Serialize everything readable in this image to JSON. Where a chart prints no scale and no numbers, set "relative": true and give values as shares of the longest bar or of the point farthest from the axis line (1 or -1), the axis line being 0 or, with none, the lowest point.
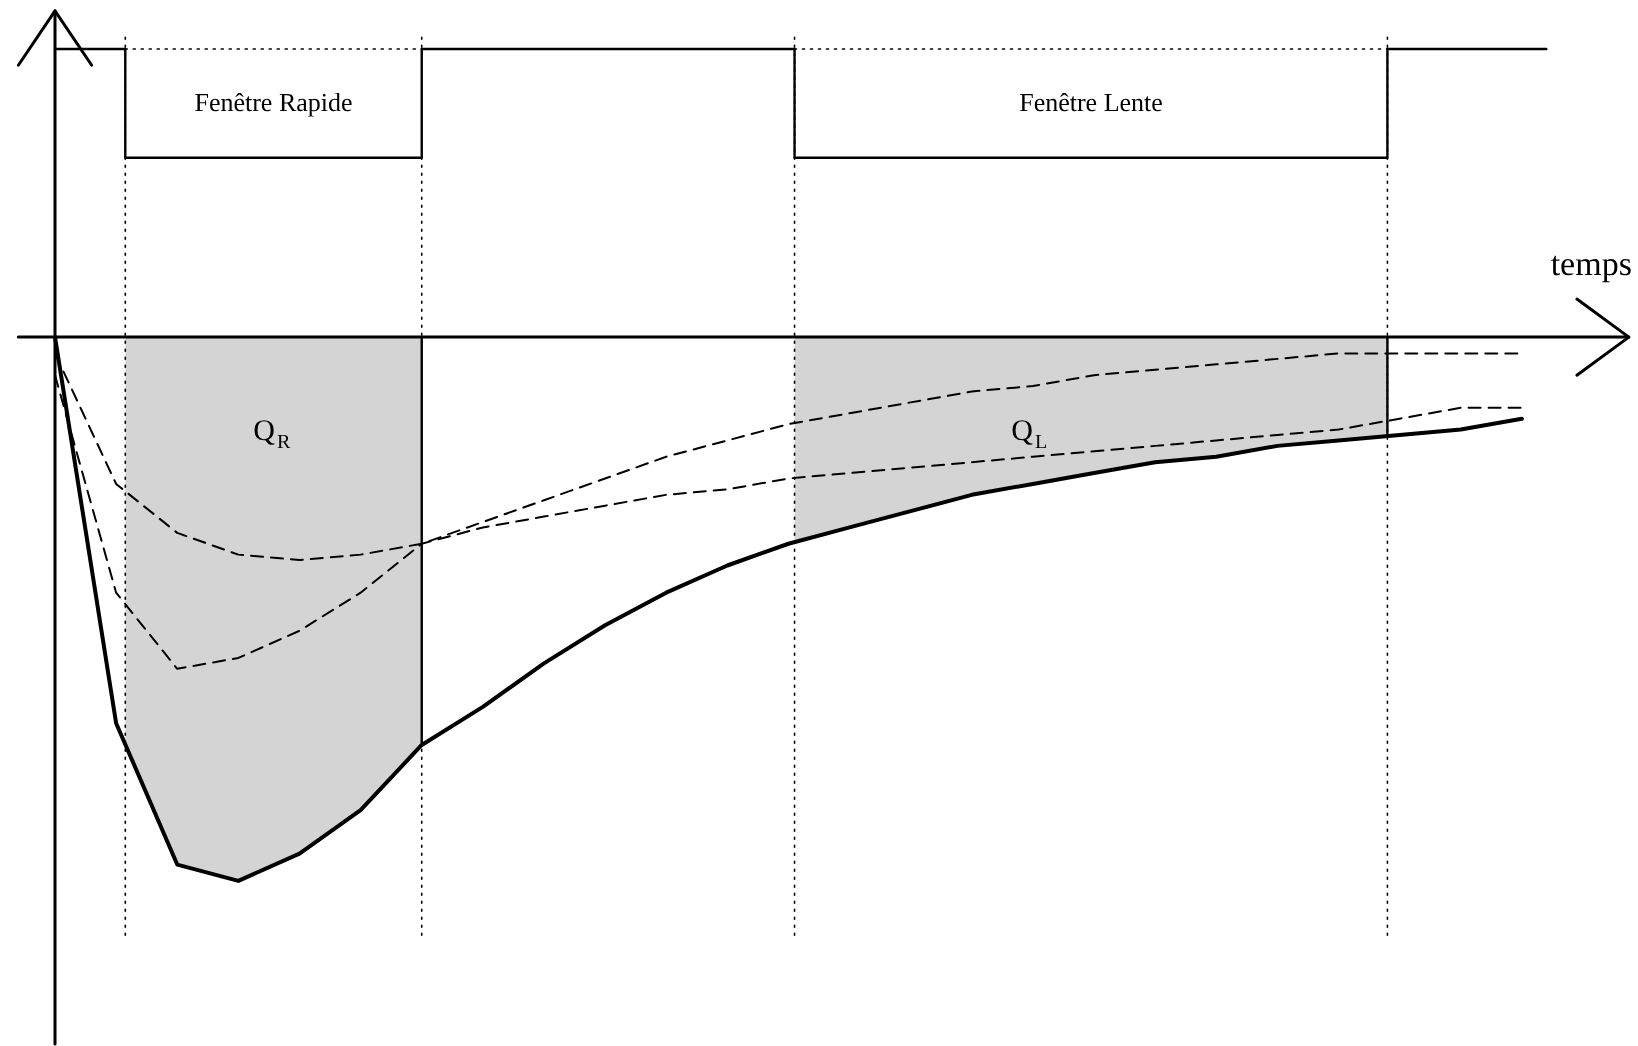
{
  "chart_data": {
    "type": "line",
    "relative": true,
    "xlabel": "temps",
    "categories": [
      null,
      null,
      null,
      null,
      null,
      null,
      null,
      null,
      null,
      null,
      null,
      null,
      null,
      null,
      null,
      null,
      null,
      null,
      null,
      null,
      null,
      null,
      null,
      null,
      null
    ],
    "series": [
      {
        "color": "#000000",
        "line_style": "solid",
        "values": [
          0,
          -0.71,
          -0.97,
          -1,
          -0.95,
          -0.87,
          -0.75,
          -0.68,
          -0.6,
          -0.53,
          -0.47,
          -0.42,
          -0.38,
          -0.35,
          -0.32,
          -0.29,
          -0.27,
          -0.25,
          -0.23,
          -0.22,
          -0.2,
          -0.19,
          -0.18,
          -0.17,
          -0.15
        ]
      },
      {
        "color": "#000000",
        "line_style": "dashed",
        "values": [
          -0.03,
          -0.27,
          -0.36,
          -0.4,
          -0.41,
          -0.4,
          -0.38,
          -0.34,
          -0.3,
          -0.26,
          -0.22,
          -0.19,
          -0.16,
          -0.14,
          -0.12,
          -0.1,
          -0.09,
          -0.07,
          -0.06,
          -0.05,
          -0.04,
          -0.03,
          -0.03,
          -0.03,
          -0.03
        ]
      },
      {
        "color": "#000000",
        "line_style": "dashed",
        "values": [
          -0.07,
          -0.47,
          -0.61,
          -0.59,
          -0.54,
          -0.47,
          -0.38,
          -0.35,
          -0.33,
          -0.31,
          -0.29,
          -0.28,
          -0.26,
          -0.25,
          -0.24,
          -0.23,
          -0.22,
          -0.21,
          -0.2,
          -0.19,
          -0.18,
          -0.17,
          -0.15,
          -0.13,
          -0.13
        ]
      }
    ],
    "annotations": [
      "Fenêtre Rapide",
      "Fenêtre Lente",
      "Q$_{R}$",
      "Q$_{L}$"
    ]
  }
}
